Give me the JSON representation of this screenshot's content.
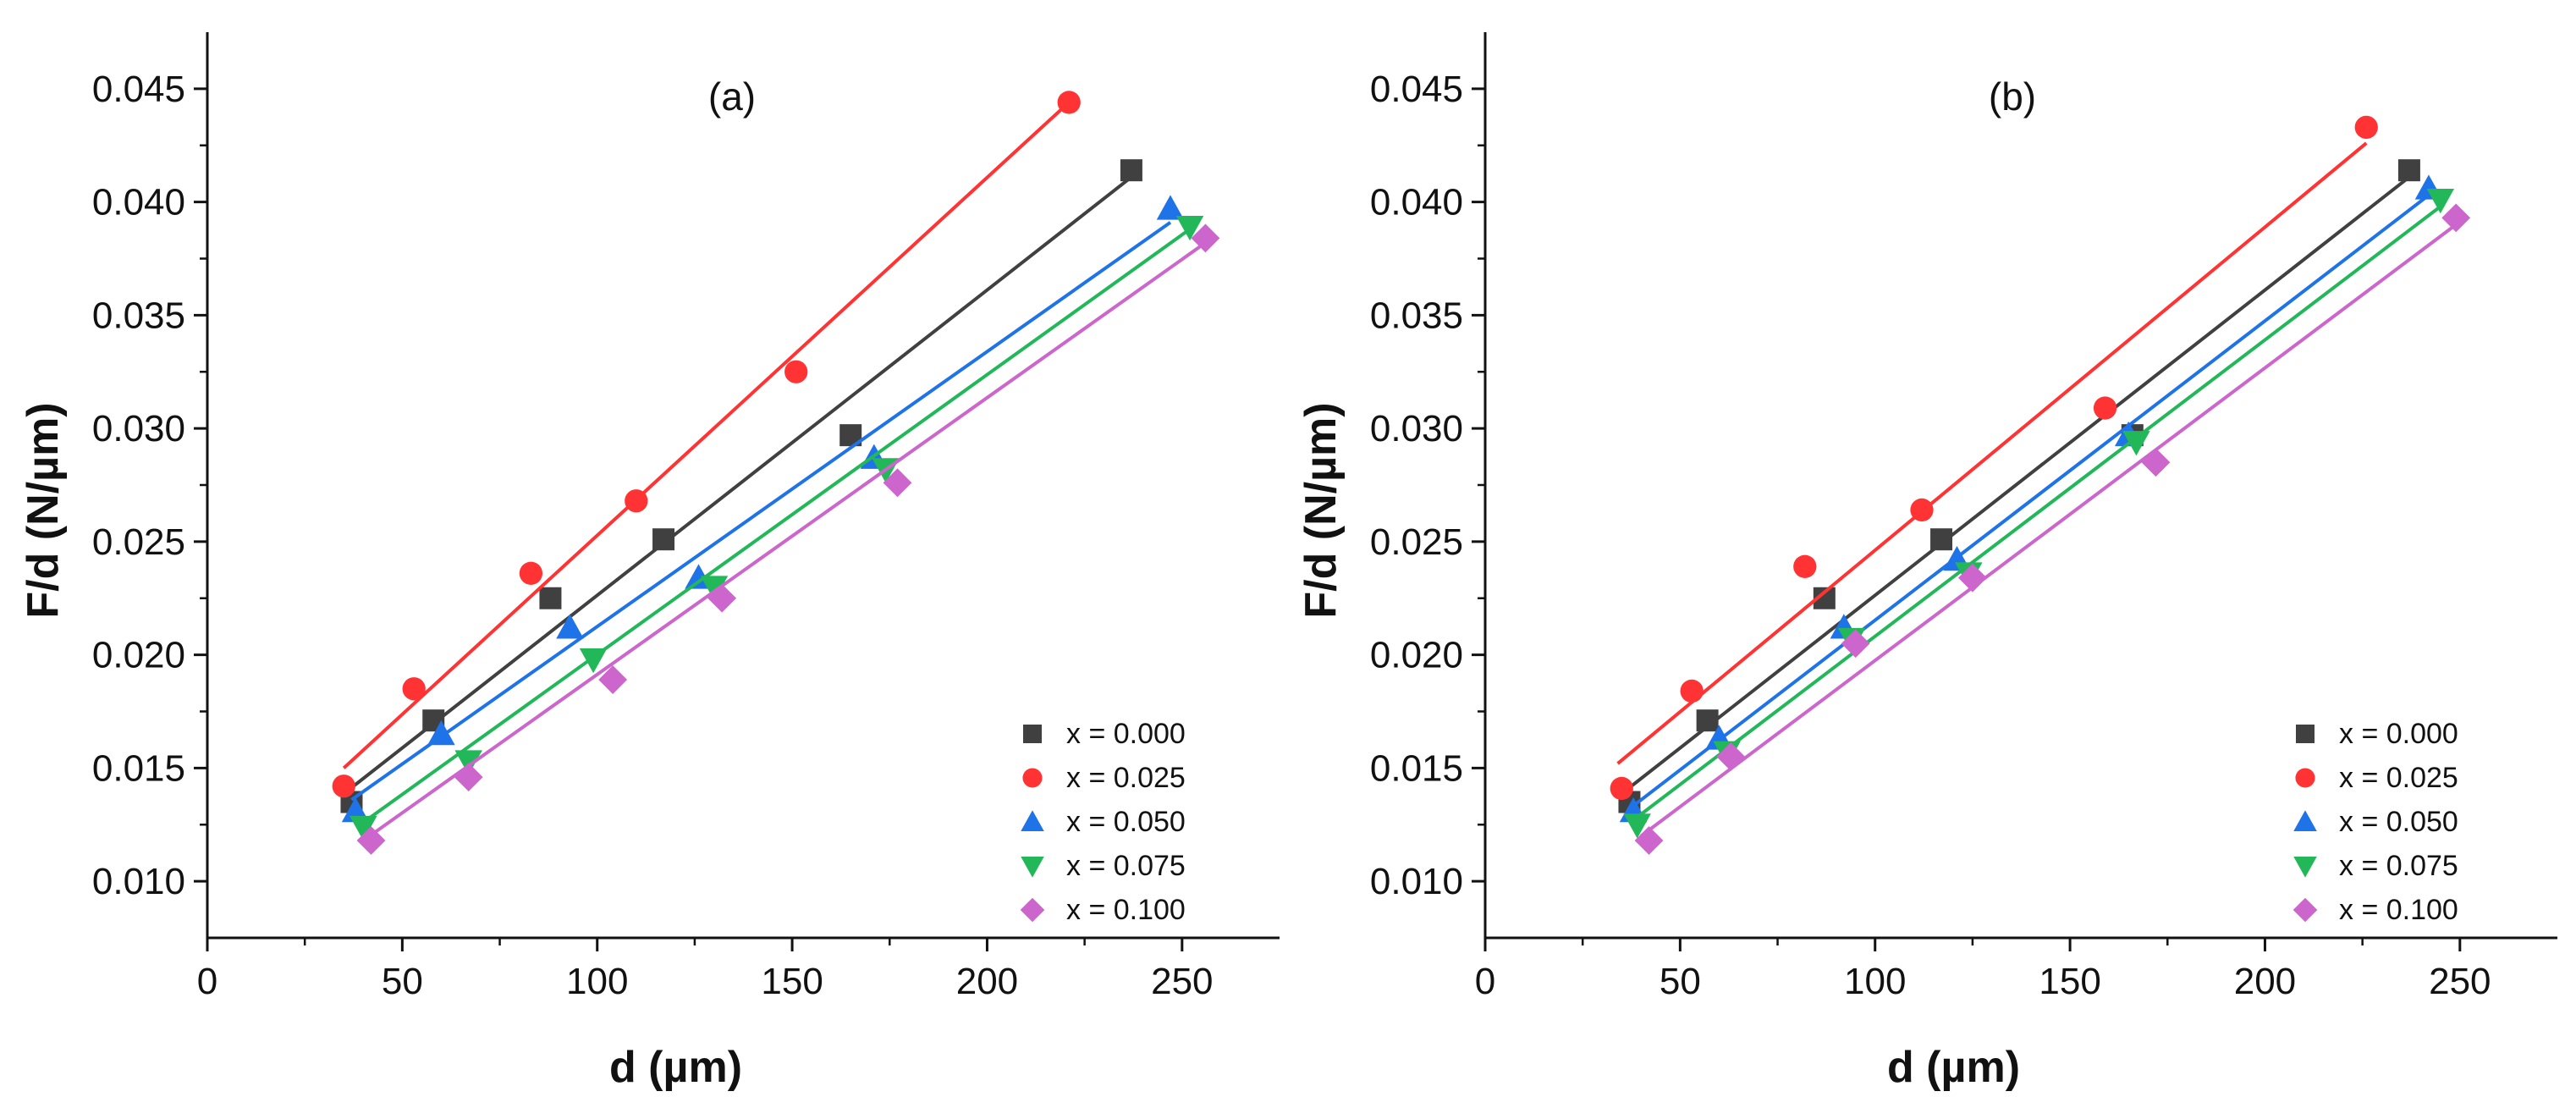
{
  "chart_data": [
    {
      "type": "scatter",
      "panel_label": "(a)",
      "xlabel": "d (µm)",
      "ylabel": "F/d (N/µm)",
      "xlim": [
        0,
        275
      ],
      "ylim": [
        0.0075,
        0.0475
      ],
      "x_ticks": [
        "0",
        "50",
        "100",
        "150",
        "200",
        "250"
      ],
      "y_ticks": [
        "0.010",
        "0.015",
        "0.020",
        "0.025",
        "0.030",
        "0.035",
        "0.040",
        "0.045"
      ],
      "legend_position": "bottom-right",
      "series": [
        {
          "name": "x = 0.000",
          "color": "#404040",
          "marker": "square",
          "x": [
            37,
            58,
            88,
            117,
            165,
            237
          ],
          "y": [
            0.0135,
            0.0171,
            0.0225,
            0.0251,
            0.0297,
            0.0414
          ],
          "fit": {
            "x": [
              36,
              237
            ],
            "y": [
              0.014,
              0.0411
            ]
          }
        },
        {
          "name": "x = 0.025",
          "color": "#ff3333",
          "marker": "circle",
          "x": [
            35,
            53,
            83,
            110,
            151,
            221
          ],
          "y": [
            0.0142,
            0.0185,
            0.0236,
            0.0268,
            0.0325,
            0.0444
          ],
          "fit": {
            "x": [
              35,
              221
            ],
            "y": [
              0.015,
              0.0444
            ]
          }
        },
        {
          "name": "x = 0.050",
          "color": "#1e73e8",
          "marker": "triangle-up",
          "x": [
            38,
            60,
            93,
            126,
            171,
            247
          ],
          "y": [
            0.0131,
            0.0165,
            0.0212,
            0.0234,
            0.0287,
            0.0397
          ],
          "fit": {
            "x": [
              37,
              247
            ],
            "y": [
              0.0136,
              0.0391
            ]
          }
        },
        {
          "name": "x = 0.075",
          "color": "#22b85a",
          "marker": "triangle-down",
          "x": [
            40,
            67,
            99,
            130,
            174,
            252
          ],
          "y": [
            0.0124,
            0.0153,
            0.0198,
            0.023,
            0.0282,
            0.0389
          ],
          "fit": {
            "x": [
              40,
              252
            ],
            "y": [
              0.0126,
              0.0388
            ]
          }
        },
        {
          "name": "x = 0.100",
          "color": "#cc66cc",
          "marker": "diamond",
          "x": [
            42,
            67,
            104,
            132,
            177,
            256
          ],
          "y": [
            0.0118,
            0.0146,
            0.0189,
            0.0225,
            0.0276,
            0.0384
          ],
          "fit": {
            "x": [
              40,
              256
            ],
            "y": [
              0.0118,
              0.0382
            ]
          }
        }
      ]
    },
    {
      "type": "scatter",
      "panel_label": "(b)",
      "xlabel": "d (µm)",
      "ylabel": "F/d (N/µm)",
      "xlim": [
        0,
        275
      ],
      "ylim": [
        0.0075,
        0.0475
      ],
      "x_ticks": [
        "0",
        "50",
        "100",
        "150",
        "200",
        "250"
      ],
      "y_ticks": [
        "0.010",
        "0.015",
        "0.020",
        "0.025",
        "0.030",
        "0.035",
        "0.040",
        "0.045"
      ],
      "legend_position": "bottom-right",
      "series": [
        {
          "name": "x = 0.000",
          "color": "#404040",
          "marker": "square",
          "x": [
            37,
            57,
            87,
            117,
            166,
            237
          ],
          "y": [
            0.0135,
            0.0171,
            0.0225,
            0.0251,
            0.0297,
            0.0414
          ],
          "fit": {
            "x": [
              36,
              237
            ],
            "y": [
              0.014,
              0.0411
            ]
          }
        },
        {
          "name": "x = 0.025",
          "color": "#ff3333",
          "marker": "circle",
          "x": [
            35,
            53,
            82,
            112,
            159,
            226
          ],
          "y": [
            0.0141,
            0.0184,
            0.0239,
            0.0264,
            0.0309,
            0.0433
          ],
          "fit": {
            "x": [
              34,
              226
            ],
            "y": [
              0.0152,
              0.0426
            ]
          }
        },
        {
          "name": "x = 0.050",
          "color": "#1e73e8",
          "marker": "triangle-up",
          "x": [
            38,
            60,
            92,
            121,
            165,
            242
          ],
          "y": [
            0.0131,
            0.0163,
            0.0212,
            0.0242,
            0.0297,
            0.0406
          ],
          "fit": {
            "x": [
              37,
              242
            ],
            "y": [
              0.0132,
              0.0403
            ]
          }
        },
        {
          "name": "x = 0.075",
          "color": "#22b85a",
          "marker": "triangle-down",
          "x": [
            39,
            62,
            94,
            124,
            167,
            245
          ],
          "y": [
            0.0125,
            0.0157,
            0.0207,
            0.0236,
            0.0294,
            0.0401
          ],
          "fit": {
            "x": [
              38,
              245
            ],
            "y": [
              0.0127,
              0.0398
            ]
          }
        },
        {
          "name": "x = 0.100",
          "color": "#cc66cc",
          "marker": "diamond",
          "x": [
            42,
            63,
            95,
            125,
            172,
            249
          ],
          "y": [
            0.0118,
            0.0155,
            0.0205,
            0.0234,
            0.0285,
            0.0393
          ],
          "fit": {
            "x": [
              40,
              249
            ],
            "y": [
              0.012,
              0.039
            ]
          }
        }
      ]
    }
  ]
}
